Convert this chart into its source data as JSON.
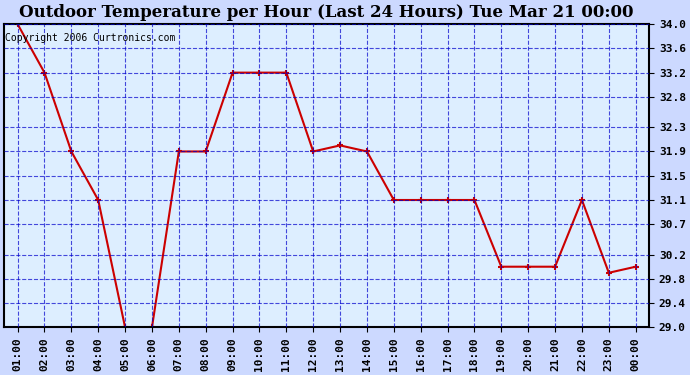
{
  "title": "Outdoor Temperature per Hour (Last 24 Hours) Tue Mar 21 00:00",
  "copyright": "Copyright 2006 Curtronics.com",
  "hours": [
    "01:00",
    "02:00",
    "03:00",
    "04:00",
    "05:00",
    "06:00",
    "07:00",
    "08:00",
    "09:00",
    "10:00",
    "11:00",
    "12:00",
    "13:00",
    "14:00",
    "15:00",
    "16:00",
    "17:00",
    "18:00",
    "19:00",
    "20:00",
    "21:00",
    "22:00",
    "23:00",
    "00:00"
  ],
  "temps": [
    34.0,
    33.2,
    31.9,
    31.1,
    29.0,
    29.0,
    31.9,
    31.9,
    33.2,
    33.2,
    33.2,
    31.9,
    32.0,
    31.9,
    31.1,
    31.1,
    31.1,
    31.1,
    30.0,
    30.0,
    30.0,
    31.1,
    29.9,
    30.0
  ],
  "ylim": [
    29.0,
    34.0
  ],
  "yticks": [
    29.0,
    29.4,
    29.8,
    30.2,
    30.7,
    31.1,
    31.5,
    31.9,
    32.3,
    32.8,
    33.2,
    33.6,
    34.0
  ],
  "line_color": "#cc0000",
  "marker_color": "#cc0000",
  "bg_color": "#ccd9ff",
  "plot_bg": "#ddeeff",
  "grid_color": "#0000cc",
  "title_color": "#000000",
  "copyright_color": "#000000",
  "title_fontsize": 12,
  "tick_fontsize": 8,
  "copyright_fontsize": 7
}
